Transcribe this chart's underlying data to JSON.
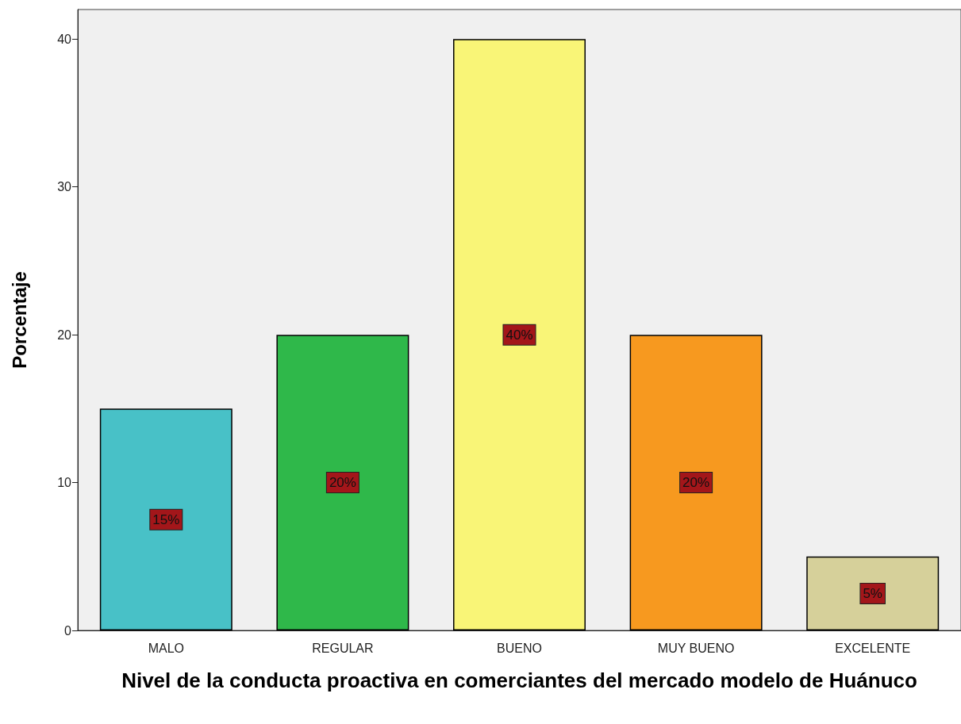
{
  "chart_data": {
    "type": "bar",
    "xlabel": "Nivel de la conducta proactiva en comerciantes del mercado modelo de Huánuco",
    "ylabel": "Porcentaje",
    "categories": [
      "MALO",
      "REGULAR",
      "BUENO",
      "MUY BUENO",
      "EXCELENTE"
    ],
    "values": [
      15,
      20,
      40,
      20,
      5
    ],
    "colors": [
      "#48c1c7",
      "#2fb84a",
      "#f9f577",
      "#f7991f",
      "#d6d09a"
    ],
    "value_labels": [
      "15%",
      "20%",
      "40%",
      "20%",
      "5%"
    ],
    "ylim": [
      0,
      42
    ],
    "yticks": [
      0,
      10,
      20,
      30,
      40
    ],
    "grid": false
  }
}
